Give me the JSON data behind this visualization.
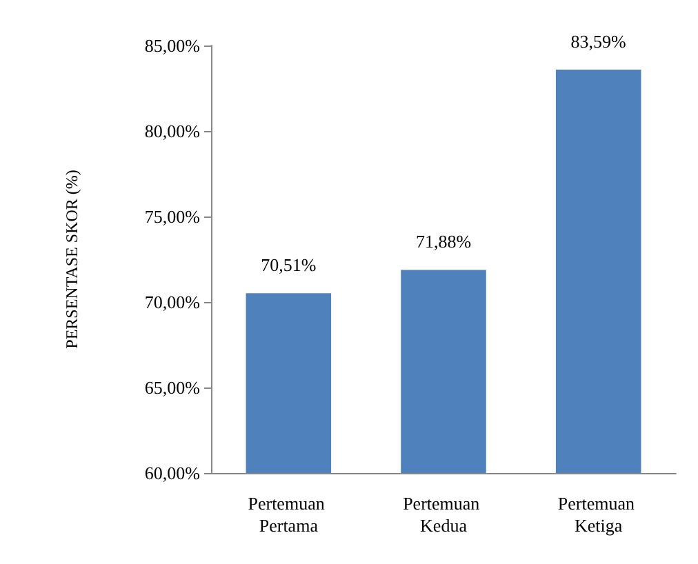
{
  "chart_data": {
    "type": "bar",
    "ylabel": "PERSENTASE SKOR (%)",
    "categories": [
      "Pertemuan Pertama",
      "Pertemuan Kedua",
      "Pertemuan Ketiga"
    ],
    "values": [
      70.51,
      71.88,
      83.59
    ],
    "value_labels": [
      "70,51%",
      "71,88%",
      "83,59%"
    ],
    "color": "#4f81bd",
    "ylim": [
      60,
      85
    ],
    "yticks": [
      {
        "value": 60,
        "label": "60,00%"
      },
      {
        "value": 65,
        "label": "65,00%"
      },
      {
        "value": 70,
        "label": "70,00%"
      },
      {
        "value": 75,
        "label": "75,00%"
      },
      {
        "value": 80,
        "label": "80,00%"
      },
      {
        "value": 85,
        "label": "85,00%"
      }
    ],
    "grid": false
  }
}
